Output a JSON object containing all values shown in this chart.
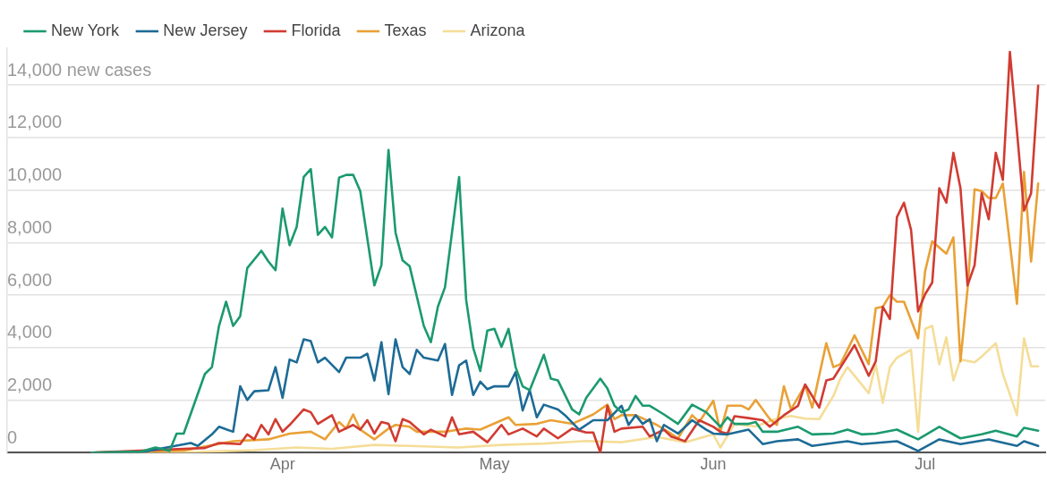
{
  "chart_data": {
    "type": "line",
    "legend": "top left",
    "grid": "y",
    "marker": "none",
    "line_style": "solid",
    "ylim": [
      0,
      15400
    ],
    "yticks": [
      0,
      {
        "value": 2000,
        "label": "2,000"
      },
      {
        "value": 4000,
        "label": "4,000"
      },
      {
        "value": 6000,
        "label": "6,000"
      },
      {
        "value": 8000,
        "label": "8,000"
      },
      {
        "value": 10000,
        "label": "10,000"
      },
      {
        "value": 12000,
        "label": "12,000"
      },
      {
        "value": 14000,
        "label": "14,000 new cases"
      }
    ],
    "xlim": [
      "--02-21",
      "--07-18"
    ],
    "xticks": [
      {
        "value": "--04-01",
        "label": "Apr"
      },
      {
        "value": "--05-01",
        "label": "May"
      },
      {
        "value": "--06-01",
        "label": "Jun"
      },
      {
        "value": "--07-01",
        "label": "Jul"
      }
    ],
    "series": [
      {
        "name": "New York",
        "color": "#1b9a6e",
        "x": [
          "--03-05",
          "--03-12",
          "--03-14",
          "--03-16",
          "--03-17",
          "--03-18",
          "--03-21",
          "--03-22",
          "--03-23",
          "--03-24",
          "--03-25",
          "--03-26",
          "--03-27",
          "--03-29",
          "--03-30",
          "--03-31",
          "--04-01",
          "--04-02",
          "--04-03",
          "--04-04",
          "--04-05",
          "--04-06",
          "--04-07",
          "--04-08",
          "--04-09",
          "--04-10",
          "--04-11",
          "--04-12",
          "--04-14",
          "--04-15",
          "--04-16",
          "--04-17",
          "--04-18",
          "--04-19",
          "--04-21",
          "--04-22",
          "--04-23",
          "--04-24",
          "--04-26",
          "--04-27",
          "--04-28",
          "--04-29",
          "--04-30",
          "--05-01",
          "--05-02",
          "--05-03",
          "--05-04",
          "--05-05",
          "--05-06",
          "--05-08",
          "--05-09",
          "--05-10",
          "--05-12",
          "--05-13",
          "--05-14",
          "--05-16",
          "--05-17",
          "--05-18",
          "--05-19",
          "--05-20",
          "--05-21",
          "--05-22",
          "--05-23",
          "--05-25",
          "--05-27",
          "--05-29",
          "--05-31",
          "--06-02",
          "--06-03",
          "--06-04",
          "--06-06",
          "--06-07",
          "--06-08",
          "--06-10",
          "--06-13",
          "--06-15",
          "--06-18",
          "--06-20",
          "--06-22",
          "--06-24",
          "--06-27",
          "--06-30",
          "--07-03",
          "--07-06",
          "--07-09",
          "--07-11",
          "--07-14",
          "--07-15",
          "--07-17"
        ],
        "values": [
          0,
          50,
          200,
          70,
          730,
          730,
          3000,
          3260,
          4830,
          5750,
          4830,
          5200,
          7030,
          7690,
          7280,
          6950,
          9300,
          7900,
          8600,
          10500,
          10800,
          8300,
          8600,
          8200,
          10470,
          10580,
          10580,
          9960,
          6370,
          7140,
          11530,
          8380,
          7320,
          7100,
          4830,
          4210,
          5560,
          6300,
          10500,
          5820,
          3990,
          3110,
          4650,
          4720,
          4030,
          4720,
          3260,
          2530,
          2380,
          3730,
          2820,
          2750,
          1650,
          1460,
          2090,
          2820,
          2450,
          1790,
          1540,
          1650,
          2160,
          1790,
          1790,
          1460,
          1100,
          1830,
          1540,
          990,
          1350,
          1100,
          1100,
          1170,
          800,
          800,
          990,
          700,
          730,
          880,
          700,
          730,
          880,
          510,
          990,
          550,
          700,
          840,
          620,
          950,
          840
        ]
      },
      {
        "name": "New Jersey",
        "color": "#1d6b96",
        "x": [
          "--03-05",
          "--03-12",
          "--03-19",
          "--03-20",
          "--03-22",
          "--03-23",
          "--03-25",
          "--03-26",
          "--03-27",
          "--03-28",
          "--03-30",
          "--03-31",
          "--04-01",
          "--04-02",
          "--04-03",
          "--04-04",
          "--04-05",
          "--04-06",
          "--04-07",
          "--04-09",
          "--04-10",
          "--04-12",
          "--04-13",
          "--04-14",
          "--04-15",
          "--04-16",
          "--04-17",
          "--04-18",
          "--04-19",
          "--04-20",
          "--04-21",
          "--04-23",
          "--04-24",
          "--04-25",
          "--04-26",
          "--04-27",
          "--04-28",
          "--04-29",
          "--04-30",
          "--05-01",
          "--05-03",
          "--05-04",
          "--05-05",
          "--05-06",
          "--05-07",
          "--05-08",
          "--05-10",
          "--05-11",
          "--05-13",
          "--05-15",
          "--05-17",
          "--05-19",
          "--05-20",
          "--05-21",
          "--05-22",
          "--05-23",
          "--05-24",
          "--05-25",
          "--05-27",
          "--05-29",
          "--05-31",
          "--06-01",
          "--06-03",
          "--06-06",
          "--06-08",
          "--06-10",
          "--06-13",
          "--06-15",
          "--06-18",
          "--06-20",
          "--06-22",
          "--06-27",
          "--06-30",
          "--07-03",
          "--07-06",
          "--07-10",
          "--07-14",
          "--07-15",
          "--07-17"
        ],
        "values": [
          0,
          20,
          370,
          260,
          700,
          990,
          800,
          2530,
          2010,
          2340,
          2380,
          3260,
          2090,
          3550,
          3440,
          4320,
          4250,
          3440,
          3620,
          3070,
          3620,
          3620,
          3770,
          2750,
          4210,
          2230,
          4320,
          3260,
          3000,
          3920,
          3620,
          3510,
          4140,
          2200,
          3330,
          3510,
          2200,
          2710,
          2420,
          2530,
          2530,
          3070,
          1610,
          2380,
          1350,
          1830,
          1650,
          1430,
          880,
          1240,
          1240,
          1790,
          1060,
          1430,
          1100,
          1280,
          440,
          1060,
          730,
          1240,
          880,
          730,
          700,
          880,
          330,
          440,
          510,
          260,
          370,
          440,
          330,
          440,
          70,
          510,
          330,
          510,
          260,
          440,
          260
        ]
      },
      {
        "name": "Florida",
        "color": "#d13b32",
        "x": [
          "--03-05",
          "--03-18",
          "--03-21",
          "--03-23",
          "--03-26",
          "--03-27",
          "--03-28",
          "--03-29",
          "--03-30",
          "--03-31",
          "--04-01",
          "--04-02",
          "--04-04",
          "--04-05",
          "--04-06",
          "--04-08",
          "--04-09",
          "--04-11",
          "--04-12",
          "--04-13",
          "--04-14",
          "--04-15",
          "--04-16",
          "--04-17",
          "--04-18",
          "--04-19",
          "--04-21",
          "--04-22",
          "--04-24",
          "--04-25",
          "--04-26",
          "--04-28",
          "--04-30",
          "--05-02",
          "--05-03",
          "--05-05",
          "--05-07",
          "--05-08",
          "--05-10",
          "--05-12",
          "--05-14",
          "--05-15",
          "--05-16",
          "--05-17",
          "--05-18",
          "--05-19",
          "--05-22",
          "--05-23",
          "--05-25",
          "--05-26",
          "--05-28",
          "--05-30",
          "--06-01",
          "--06-02",
          "--06-03",
          "--06-04",
          "--06-06",
          "--06-08",
          "--06-09",
          "--06-11",
          "--06-13",
          "--06-14",
          "--06-16",
          "--06-17",
          "--06-18",
          "--06-21",
          "--06-23",
          "--06-24",
          "--06-25",
          "--06-26",
          "--06-27",
          "--06-28",
          "--06-29",
          "--06-30",
          "--07-01",
          "--07-02",
          "--07-03",
          "--07-04",
          "--07-05",
          "--07-06",
          "--07-07",
          "--07-08",
          "--07-09",
          "--07-10",
          "--07-11",
          "--07-12",
          "--07-13",
          "--07-15",
          "--07-16",
          "--07-17"
        ],
        "values": [
          0,
          150,
          180,
          370,
          330,
          700,
          510,
          1060,
          700,
          1280,
          800,
          1060,
          1650,
          1540,
          1100,
          1430,
          800,
          1060,
          880,
          1240,
          730,
          1170,
          1100,
          440,
          1280,
          1170,
          700,
          880,
          620,
          1350,
          700,
          800,
          400,
          1060,
          700,
          920,
          620,
          920,
          550,
          920,
          770,
          770,
          0,
          1790,
          800,
          920,
          990,
          620,
          880,
          620,
          440,
          1240,
          990,
          800,
          730,
          1390,
          1320,
          1240,
          990,
          1430,
          1790,
          2600,
          1720,
          2750,
          2820,
          4100,
          2930,
          3480,
          5560,
          5090,
          8970,
          9520,
          8490,
          5380,
          6040,
          6480,
          10070,
          9520,
          11420,
          10070,
          6370,
          7140,
          9880,
          8890,
          11420,
          10390,
          15260,
          9220,
          9880,
          13980
        ]
      },
      {
        "name": "Texas",
        "color": "#e9a136",
        "x": [
          "--03-05",
          "--03-18",
          "--03-25",
          "--03-30",
          "--04-02",
          "--04-05",
          "--04-07",
          "--04-09",
          "--04-10",
          "--04-11",
          "--04-12",
          "--04-14",
          "--04-16",
          "--04-17",
          "--04-19",
          "--04-20",
          "--04-24",
          "--04-27",
          "--04-29",
          "--05-03",
          "--05-04",
          "--05-07",
          "--05-09",
          "--05-12",
          "--05-15",
          "--05-17",
          "--05-18",
          "--05-19",
          "--05-21",
          "--05-24",
          "--05-26",
          "--05-27",
          "--05-29",
          "--05-30",
          "--06-01",
          "--06-02",
          "--06-03",
          "--06-05",
          "--06-06",
          "--06-07",
          "--06-09",
          "--06-10",
          "--06-11",
          "--06-12",
          "--06-14",
          "--06-15",
          "--06-17",
          "--06-18",
          "--06-19",
          "--06-21",
          "--06-23",
          "--06-24",
          "--06-25",
          "--06-26",
          "--06-27",
          "--06-28",
          "--06-30",
          "--07-01",
          "--07-02",
          "--07-04",
          "--07-05",
          "--07-06",
          "--07-07",
          "--07-08",
          "--07-09",
          "--07-10",
          "--07-11",
          "--07-12",
          "--07-14",
          "--07-15",
          "--07-16",
          "--07-17"
        ],
        "values": [
          0,
          80,
          440,
          510,
          730,
          800,
          510,
          1170,
          920,
          1460,
          880,
          510,
          920,
          1060,
          990,
          800,
          800,
          920,
          880,
          1350,
          1060,
          1100,
          1240,
          1100,
          1460,
          1830,
          1280,
          1430,
          1430,
          1060,
          730,
          550,
          1430,
          1170,
          1980,
          800,
          1790,
          1790,
          1650,
          2010,
          1280,
          1060,
          2530,
          1650,
          2560,
          1720,
          4170,
          3260,
          3370,
          4470,
          3370,
          5500,
          5560,
          6000,
          5750,
          5750,
          4360,
          6920,
          8050,
          7580,
          8200,
          3480,
          6220,
          10030,
          9960,
          9700,
          9700,
          10250,
          5670,
          10690,
          7280,
          10250
        ]
      },
      {
        "name": "Arizona",
        "color": "#f5dd98",
        "x": [
          "--03-05",
          "--03-20",
          "--03-28",
          "--04-03",
          "--04-08",
          "--04-14",
          "--04-20",
          "--04-26",
          "--05-02",
          "--05-08",
          "--05-14",
          "--05-19",
          "--05-24",
          "--05-28",
          "--06-01",
          "--06-02",
          "--06-04",
          "--06-07",
          "--06-10",
          "--06-12",
          "--06-14",
          "--06-16",
          "--06-18",
          "--06-19",
          "--06-20",
          "--06-23",
          "--06-24",
          "--06-25",
          "--06-26",
          "--06-27",
          "--06-29",
          "--06-30",
          "--07-01",
          "--07-02",
          "--07-03",
          "--07-04",
          "--07-05",
          "--07-06",
          "--07-08",
          "--07-09",
          "--07-11",
          "--07-12",
          "--07-14",
          "--07-15",
          "--07-16",
          "--07-17"
        ],
        "values": [
          0,
          30,
          100,
          200,
          150,
          300,
          250,
          200,
          300,
          350,
          450,
          400,
          600,
          400,
          700,
          200,
          1100,
          1000,
          1300,
          1400,
          1300,
          1280,
          2160,
          2820,
          3260,
          2270,
          3370,
          1900,
          3260,
          3620,
          3920,
          800,
          4720,
          4830,
          3370,
          4390,
          2750,
          3550,
          3440,
          3660,
          4170,
          3000,
          1430,
          4360,
          3290,
          3290
        ]
      }
    ]
  }
}
